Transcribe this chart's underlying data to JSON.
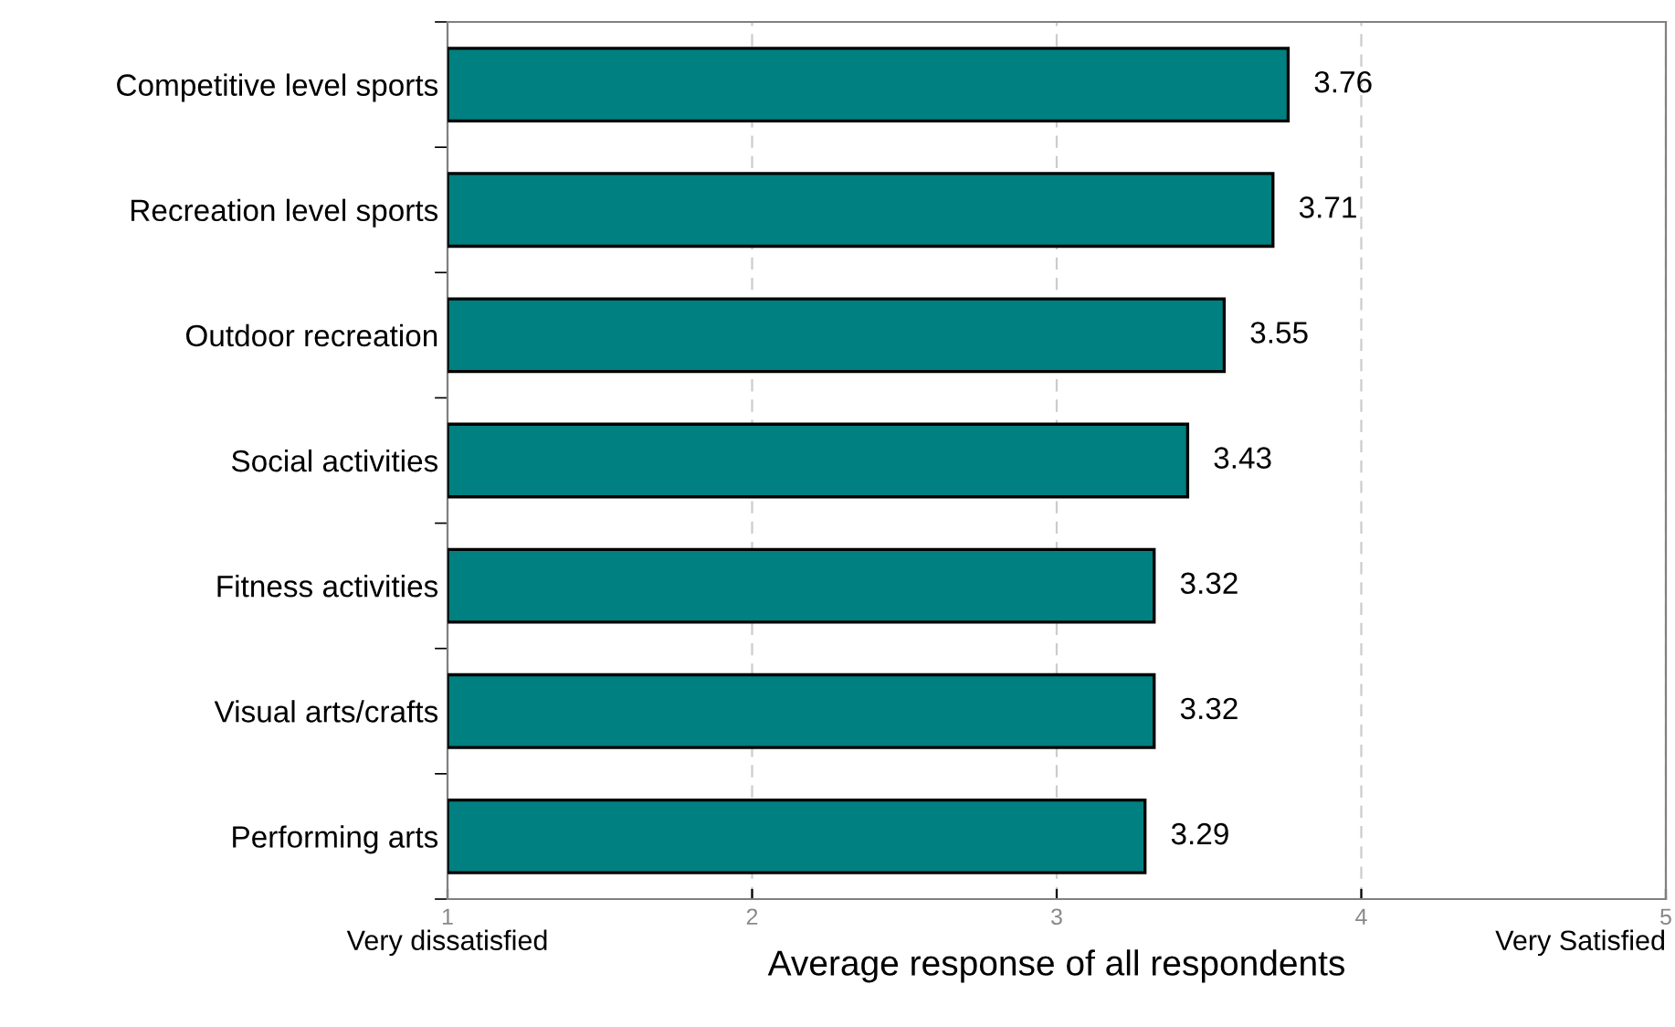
{
  "chart_data": {
    "type": "bar",
    "orientation": "horizontal",
    "xlabel": "Average response of all respondents",
    "categories": [
      "Competitive level sports",
      "Recreation level sports",
      "Outdoor recreation",
      "Social activities",
      "Fitness activities",
      "Visual arts/crafts",
      "Performing arts"
    ],
    "values": [
      3.76,
      3.71,
      3.55,
      3.43,
      3.32,
      3.32,
      3.29
    ],
    "color": "#008080",
    "data_labels": true,
    "xlim": [
      1,
      5
    ],
    "xticks": [
      1,
      2,
      3,
      4,
      5
    ],
    "grid": "x",
    "annotations": [
      "Very dissatisfied",
      "Very Satisfied"
    ]
  }
}
